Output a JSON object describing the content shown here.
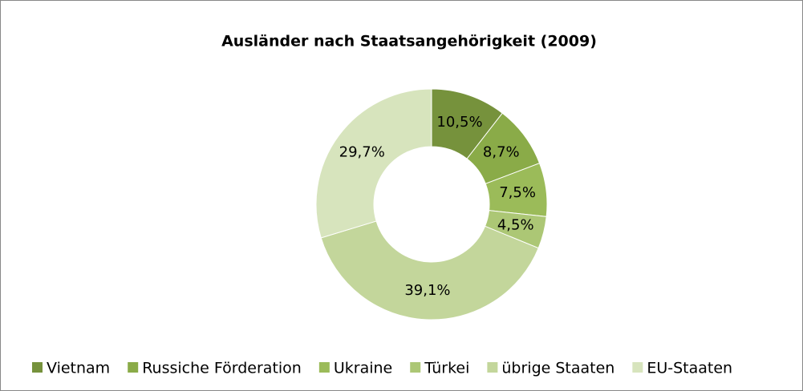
{
  "chart_data": {
    "type": "donut",
    "title": "Ausländer nach Staatsangehörigkeit (2009)",
    "categories": [
      "Vietnam",
      "Russiche Förderation",
      "Ukraine",
      "Türkei",
      "übrige Staaten",
      "EU-Staaten"
    ],
    "values": [
      10.5,
      8.7,
      7.5,
      4.5,
      39.1,
      29.7
    ],
    "value_labels": [
      "10,5%",
      "8,7%",
      "7,5%",
      "4,5%",
      "39,1%",
      "29,7%"
    ],
    "colors": [
      "#76923c",
      "#8aab48",
      "#9bbb59",
      "#acc775",
      "#c3d69b",
      "#d7e4bd"
    ],
    "legend": "bottom"
  }
}
